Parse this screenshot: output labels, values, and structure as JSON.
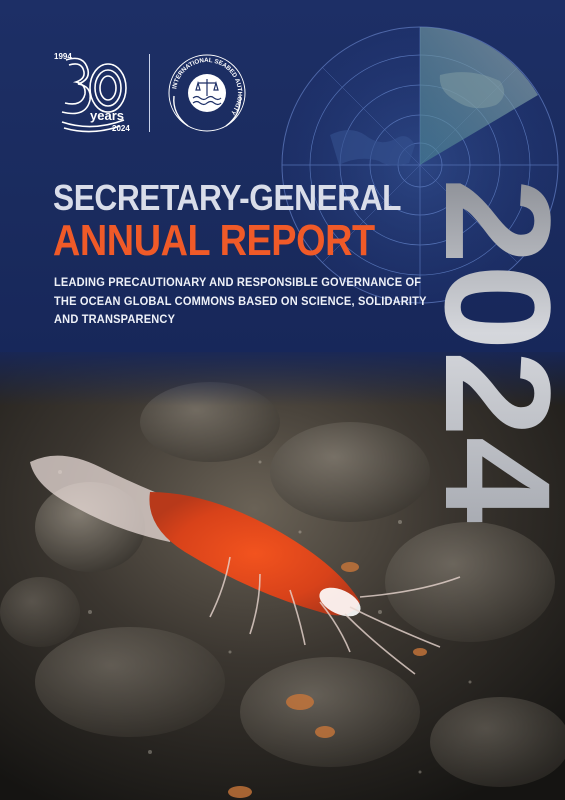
{
  "cover": {
    "title_line1": "SECRETARY-GENERAL",
    "title_line2": "ANNUAL REPORT",
    "subtitle": "LEADING PRECAUTIONARY AND RESPONSIBLE GOVERNANCE OF THE OCEAN GLOBAL COMMONS BASED ON SCIENCE, SOLIDARITY AND TRANSPARENCY",
    "year": "2024"
  },
  "anniversary_logo": {
    "start_year": "1994",
    "number": "30",
    "word": "years",
    "end_year": "2024"
  },
  "isa_logo": {
    "ring_text": "INTERNATIONAL SEABED AUTHORITY"
  },
  "colors": {
    "navy": "#1b2a5c",
    "accent_orange": "#f05a28",
    "title_light": "#d9dde9",
    "year_silver": "#b9bcc2"
  },
  "icons": {
    "radar": "radar-globe-graphic",
    "logo_left": "anniversary-30-years-logo",
    "logo_right": "isa-emblem-logo",
    "photo": "deep-sea-shrimp-photo"
  }
}
